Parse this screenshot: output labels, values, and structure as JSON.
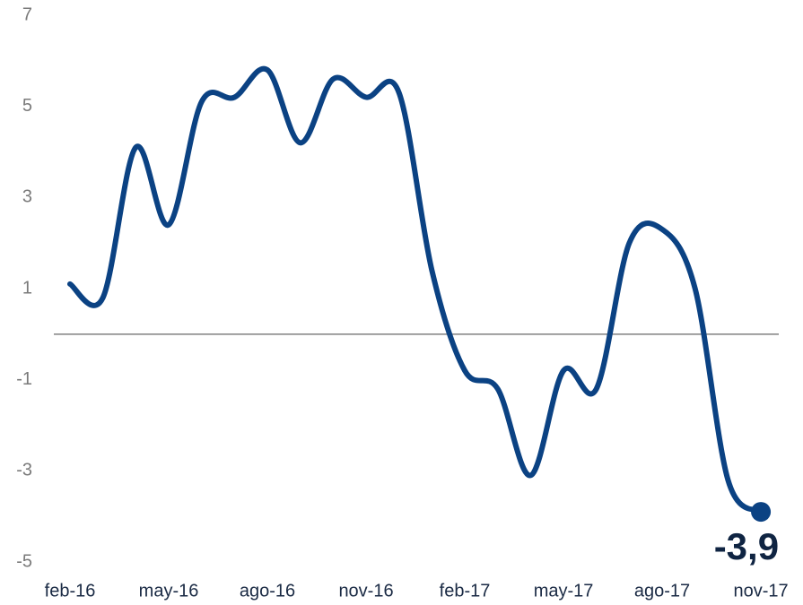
{
  "chart_data": {
    "type": "line",
    "categories": [
      "feb-16",
      null,
      null,
      "may-16",
      null,
      null,
      "ago-16",
      null,
      null,
      "nov-16",
      null,
      null,
      "feb-17",
      null,
      null,
      "may-17",
      null,
      null,
      "ago-17",
      null,
      null,
      "nov-17"
    ],
    "series": [
      {
        "color": "#0b4283",
        "values": [
          1.1,
          0.8,
          4.1,
          2.4,
          5.1,
          5.2,
          5.8,
          4.2,
          5.6,
          5.2,
          5.3,
          1.4,
          -0.8,
          -1.2,
          -3.1,
          -0.8,
          -1.2,
          2.0,
          2.3,
          1.0,
          -3.2,
          -3.9
        ],
        "value_labels": [
          null,
          null,
          null,
          null,
          null,
          null,
          null,
          null,
          null,
          null,
          null,
          null,
          null,
          null,
          null,
          null,
          null,
          null,
          null,
          null,
          null,
          "-3,9"
        ]
      }
    ],
    "ylim": [
      -5,
      7
    ],
    "yticks": [
      -5,
      -3,
      -1,
      1,
      3,
      5,
      7
    ]
  }
}
